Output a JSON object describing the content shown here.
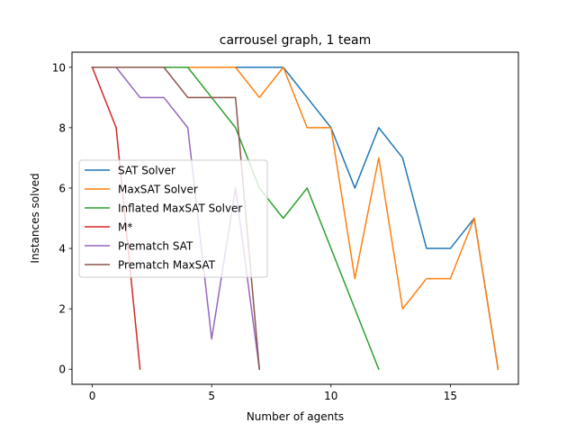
{
  "chart_data": {
    "type": "line",
    "title": "carrousel graph, 1 team",
    "xlabel": "Number of agents",
    "ylabel": "Instances solved",
    "xlim": [
      -0.85,
      17.85
    ],
    "ylim": [
      -0.5,
      10.5
    ],
    "xticks": [
      0,
      5,
      10,
      15
    ],
    "yticks": [
      0,
      2,
      4,
      6,
      8,
      10
    ],
    "grid": false,
    "legend_position": "center-left",
    "series": [
      {
        "name": "SAT Solver",
        "color": "#1f77b4",
        "x": [
          0,
          1,
          2,
          3,
          4,
          5,
          6,
          7,
          8,
          9,
          10,
          11,
          12,
          13,
          14,
          15,
          16,
          17
        ],
        "y": [
          10,
          10,
          10,
          10,
          10,
          10,
          10,
          10,
          10,
          9,
          8,
          6,
          8,
          7,
          4,
          4,
          5,
          0
        ]
      },
      {
        "name": "MaxSAT Solver",
        "color": "#ff7f0e",
        "x": [
          0,
          1,
          2,
          3,
          4,
          5,
          6,
          7,
          8,
          9,
          10,
          11,
          12,
          13,
          14,
          15,
          16,
          17
        ],
        "y": [
          10,
          10,
          10,
          10,
          10,
          10,
          10,
          9,
          10,
          8,
          8,
          3,
          7,
          2,
          3,
          3,
          5,
          0
        ]
      },
      {
        "name": "Inflated MaxSAT Solver",
        "color": "#2ca02c",
        "x": [
          0,
          1,
          2,
          3,
          4,
          5,
          6,
          7,
          8,
          9,
          10,
          11,
          12
        ],
        "y": [
          10,
          10,
          10,
          10,
          10,
          9,
          8,
          6,
          5,
          6,
          4,
          2,
          0
        ]
      },
      {
        "name": "M*",
        "color": "#d62728",
        "x": [
          0,
          1,
          2
        ],
        "y": [
          10,
          8,
          0
        ]
      },
      {
        "name": "Prematch SAT",
        "color": "#9467bd",
        "x": [
          0,
          1,
          2,
          3,
          4,
          5,
          6,
          7
        ],
        "y": [
          10,
          10,
          9,
          9,
          8,
          1,
          6,
          0
        ]
      },
      {
        "name": "Prematch MaxSAT",
        "color": "#8c564b",
        "x": [
          0,
          1,
          2,
          3,
          4,
          5,
          6,
          7
        ],
        "y": [
          10,
          10,
          10,
          10,
          9,
          9,
          9,
          0
        ]
      }
    ]
  }
}
